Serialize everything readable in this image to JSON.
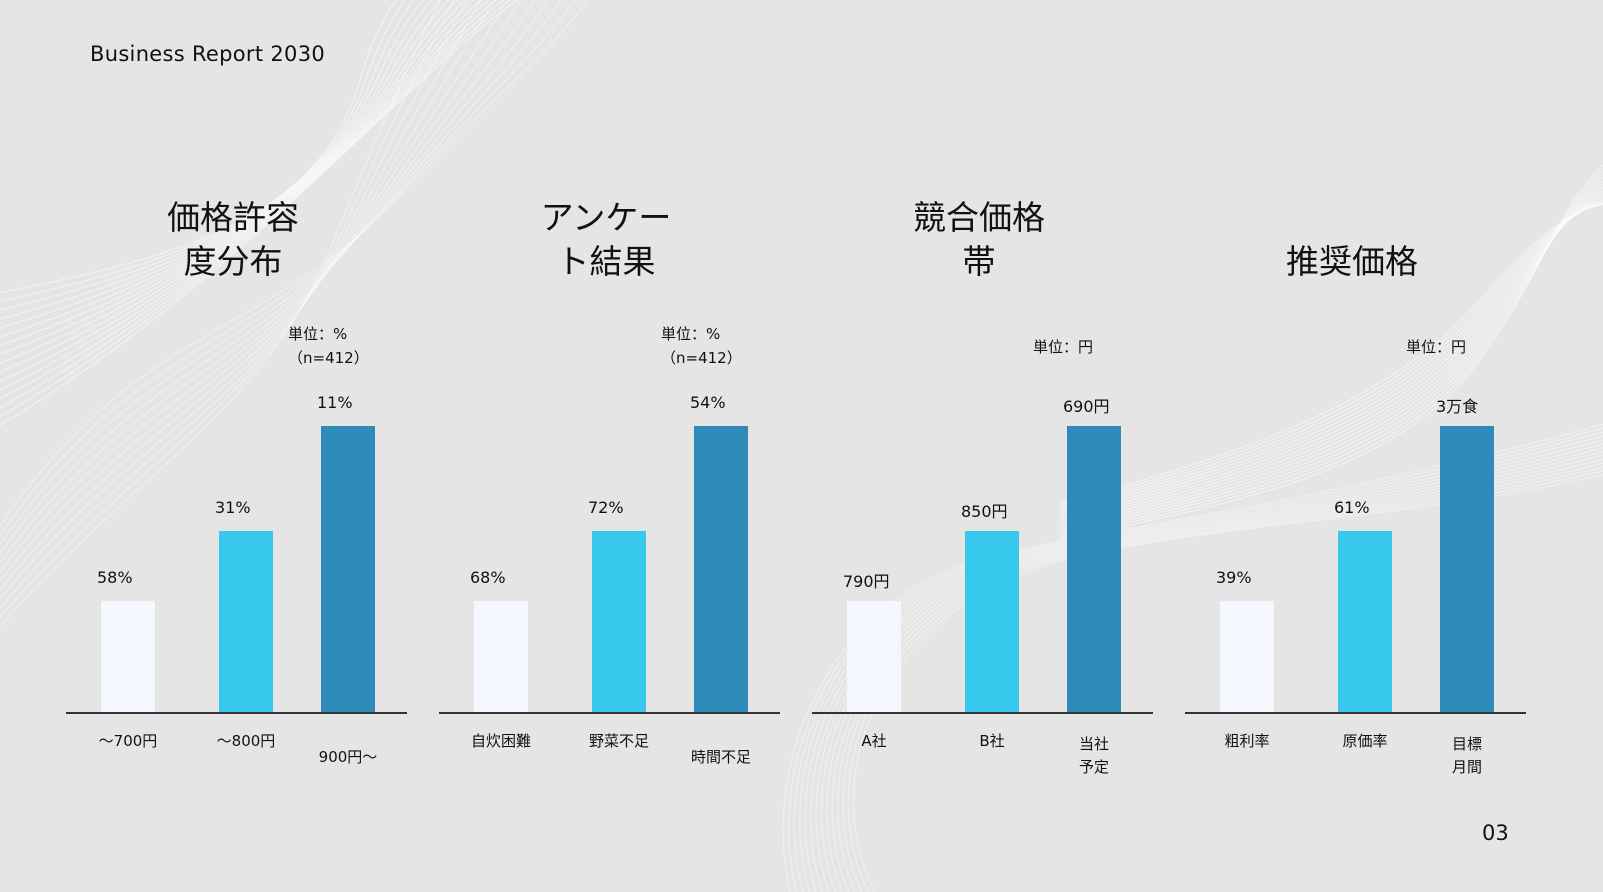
{
  "header": {
    "title": "Business Report 2030"
  },
  "page_number": "03",
  "colors": {
    "background": "#e6e5e6",
    "bar_light": "#f4f7fd",
    "bar_cyan": "#38c8ee",
    "bar_blue": "#2d8ab9",
    "wave": "#ffffff"
  },
  "chart_data": [
    {
      "type": "bar",
      "title": "価格許容\n度分布",
      "unit": "単位：%\n（n=412）",
      "categories": [
        "～700円",
        "～800円",
        "900円～"
      ],
      "value_labels": [
        "58%",
        "31%",
        "11%"
      ],
      "values": [
        58,
        31,
        11
      ]
    },
    {
      "type": "bar",
      "title": "アンケー\nト結果",
      "unit": "単位：%\n（n=412）",
      "categories": [
        "自炊困難",
        "野菜不足",
        "時間不足"
      ],
      "value_labels": [
        "68%",
        "72%",
        "54%"
      ],
      "values": [
        68,
        72,
        54
      ]
    },
    {
      "type": "bar",
      "title": "競合価格\n帯",
      "unit": "単位：円",
      "categories": [
        "A社",
        "B社",
        "当社\n予定"
      ],
      "value_labels": [
        "790円",
        "850円",
        "690円"
      ],
      "values": [
        790,
        850,
        690
      ]
    },
    {
      "type": "bar",
      "title": "推奨価格",
      "unit": "単位：円",
      "categories": [
        "粗利率",
        "原価率",
        "目標\n月間"
      ],
      "value_labels": [
        "39%",
        "61%",
        "3万食"
      ],
      "values": [
        39,
        61,
        3
      ]
    }
  ]
}
